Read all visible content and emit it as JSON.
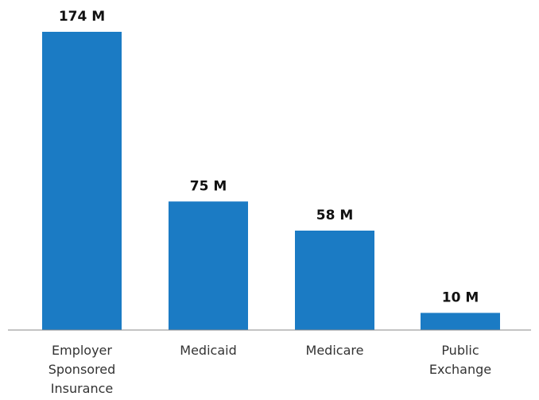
{
  "chart_data": {
    "type": "bar",
    "categories": [
      [
        "Employer",
        "Sponsored",
        "Insurance"
      ],
      [
        "Medicaid"
      ],
      [
        "Medicare"
      ],
      [
        "Public",
        "Exchange"
      ]
    ],
    "values": [
      174,
      75,
      58,
      10
    ],
    "data_labels": [
      "174 M",
      "75 M",
      "58 M",
      "10 M"
    ],
    "title": "",
    "xlabel": "",
    "ylabel": "",
    "ylim": [
      0,
      174
    ],
    "grid": false,
    "legend": "none",
    "bar_color": "#1b7bc4",
    "baseline_color": "#8a8a8a"
  }
}
